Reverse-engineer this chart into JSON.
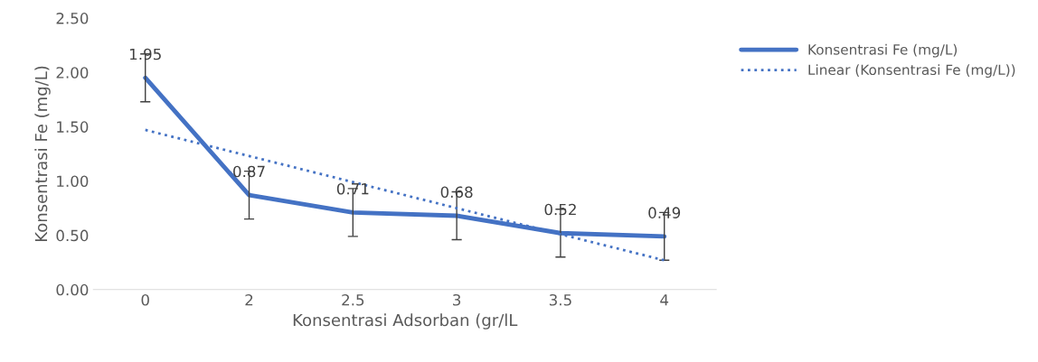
{
  "chart_data": {
    "type": "line",
    "xlabel": "Konsentrasi Adsorban (gr/lL",
    "ylabel": "Konsentrasi Fe (mg/L)",
    "categories": [
      "0",
      "2",
      "2.5",
      "3",
      "3.5",
      "4"
    ],
    "series": [
      {
        "name": "Konsentrasi Fe (mg/L)",
        "color": "#4472c4",
        "values": [
          1.95,
          0.87,
          0.71,
          0.68,
          0.52,
          0.49
        ],
        "errors": [
          0.22,
          0.22,
          0.22,
          0.22,
          0.22,
          0.22
        ],
        "value_labels": [
          "1.95",
          "0.87",
          "0.71",
          "0.68",
          "0.52",
          "0.49"
        ],
        "line_style": "solid"
      },
      {
        "name": "Linear (Konsentrasi Fe (mg/L))",
        "color": "#4472c4",
        "values": [
          1.47,
          1.23,
          0.99,
          0.75,
          0.51,
          0.27
        ],
        "line_style": "dotted"
      }
    ],
    "ylim": [
      0,
      2.5
    ],
    "yticks": [
      {
        "value": 0,
        "label": "0.00"
      },
      {
        "value": 0.5,
        "label": "0.50"
      },
      {
        "value": 1,
        "label": "1.00"
      },
      {
        "value": 1.5,
        "label": "1.50"
      },
      {
        "value": 2,
        "label": "2.00"
      },
      {
        "value": 2.5,
        "label": "2.50"
      }
    ],
    "grid": false,
    "legend": "right",
    "marker": "none"
  }
}
